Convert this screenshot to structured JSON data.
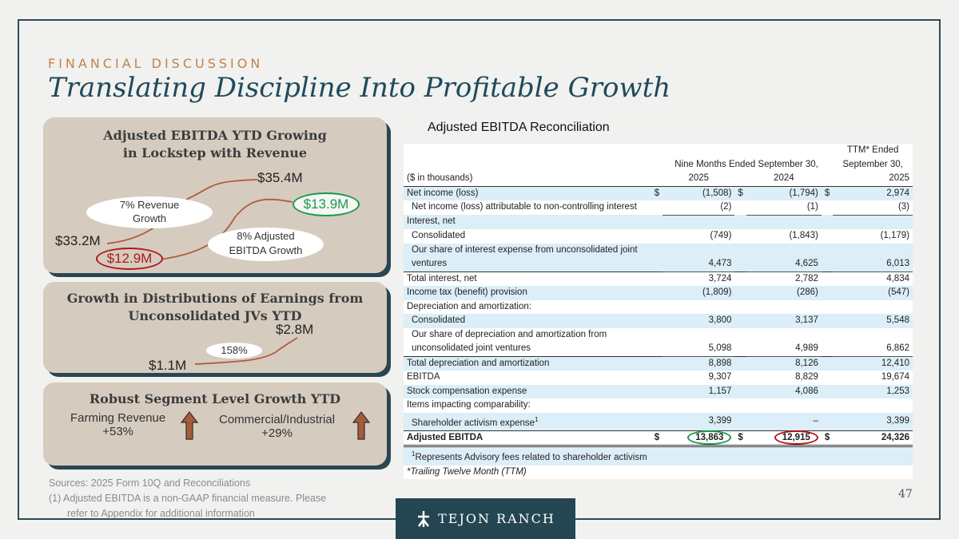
{
  "header": {
    "eyebrow": "FINANCIAL DISCUSSION",
    "title": "Translating Discipline Into Profitable Growth"
  },
  "panel1": {
    "title_line1": "Adjusted EBITDA YTD Growing",
    "title_line2": "in Lockstep with Revenue",
    "revenue_end": "$35.4M",
    "revenue_start": "$33.2M",
    "ebitda_end": "$13.9M",
    "ebitda_start": "$12.9M",
    "revenue_growth_line1": "7%  Revenue",
    "revenue_growth_line2": "Growth",
    "ebitda_growth_line1": "8% Adjusted",
    "ebitda_growth_line2": "EBITDA Growth"
  },
  "panel2": {
    "title_line1": "Growth in Distributions of Earnings from",
    "title_line2": "Unconsolidated JVs YTD",
    "end": "$2.8M",
    "start": "$1.1M",
    "growth": "158%"
  },
  "panel3": {
    "title": "Robust Segment Level Growth YTD",
    "farming_label": "Farming Revenue",
    "farming_value": "+53%",
    "commercial_label": "Commercial/Industrial",
    "commercial_value": "+29%"
  },
  "recon": {
    "title": "Adjusted EBITDA Reconciliation",
    "hdr_ttm_1": "TTM* Ended",
    "hdr_nine": "Nine Months Ended September 30,",
    "hdr_ttm_2": "September 30,",
    "units": "($ in thousands)",
    "y1": "2025",
    "y2": "2024",
    "y3": "2025",
    "rows": [
      {
        "label": "Net income (loss)",
        "c1": "(1,508)",
        "c2": "(1,794)",
        "c3": "2,974",
        "d1": "$",
        "d2": "$",
        "d3": "$"
      },
      {
        "label": "Net income (loss) attributable to non-controlling interest",
        "c1": "(2)",
        "c2": "(1)",
        "c3": "(3)"
      },
      {
        "label": "Interest, net"
      },
      {
        "label": "Consolidated",
        "c1": "(749)",
        "c2": "(1,843)",
        "c3": "(1,179)"
      },
      {
        "label": "Our share of interest expense from unconsolidated joint"
      },
      {
        "label": "ventures",
        "c1": "4,473",
        "c2": "4,625",
        "c3": "6,013"
      },
      {
        "label": "Total interest, net",
        "c1": "3,724",
        "c2": "2,782",
        "c3": "4,834"
      },
      {
        "label": "Income tax (benefit) provision",
        "c1": "(1,809)",
        "c2": "(286)",
        "c3": "(547)"
      },
      {
        "label": "Depreciation and amortization:"
      },
      {
        "label": "Consolidated",
        "c1": "3,800",
        "c2": "3,137",
        "c3": "5,548"
      },
      {
        "label": "Our share of depreciation and amortization from"
      },
      {
        "label": "unconsolidated joint ventures",
        "c1": "5,098",
        "c2": "4,989",
        "c3": "6,862"
      },
      {
        "label": "Total depreciation and amortization",
        "c1": "8,898",
        "c2": "8,126",
        "c3": "12,410"
      },
      {
        "label": "EBITDA",
        "c1": "9,307",
        "c2": "8,829",
        "c3": "19,674"
      },
      {
        "label": "Stock compensation expense",
        "c1": "1,157",
        "c2": "4,086",
        "c3": "1,253"
      },
      {
        "label": "Items impacting comparability:"
      },
      {
        "label": "Shareholder activism expense",
        "sup": "1",
        "c1": "3,399",
        "c2": "–",
        "c3": "3,399"
      },
      {
        "label": "Adjusted EBITDA",
        "c1": "13,863",
        "c2": "12,915",
        "c3": "24,326",
        "d1": "$",
        "d2": "$",
        "d3": "$"
      }
    ],
    "footnote": "Represents Advisory fees related to shareholder activism",
    "footnote_sup": "1",
    "ttm_note": "*Trailing Twelve Month (TTM)"
  },
  "footer": {
    "sources": "Sources: 2025 Form 10Q and Reconciliations",
    "note_line1": "(1)  Adjusted EBITDA is a non-GAAP financial measure.  Please",
    "note_line2": "refer to Appendix for additional information",
    "page": "47",
    "logo": "TEJON RANCH"
  },
  "colors": {
    "navy": "#244653",
    "accent": "#c0834a",
    "green": "#1a9a4a",
    "red": "#b0161b",
    "panel": "#d5ccbf"
  },
  "icons": [
    "up-arrow-icon",
    "tejon-logo-icon"
  ]
}
